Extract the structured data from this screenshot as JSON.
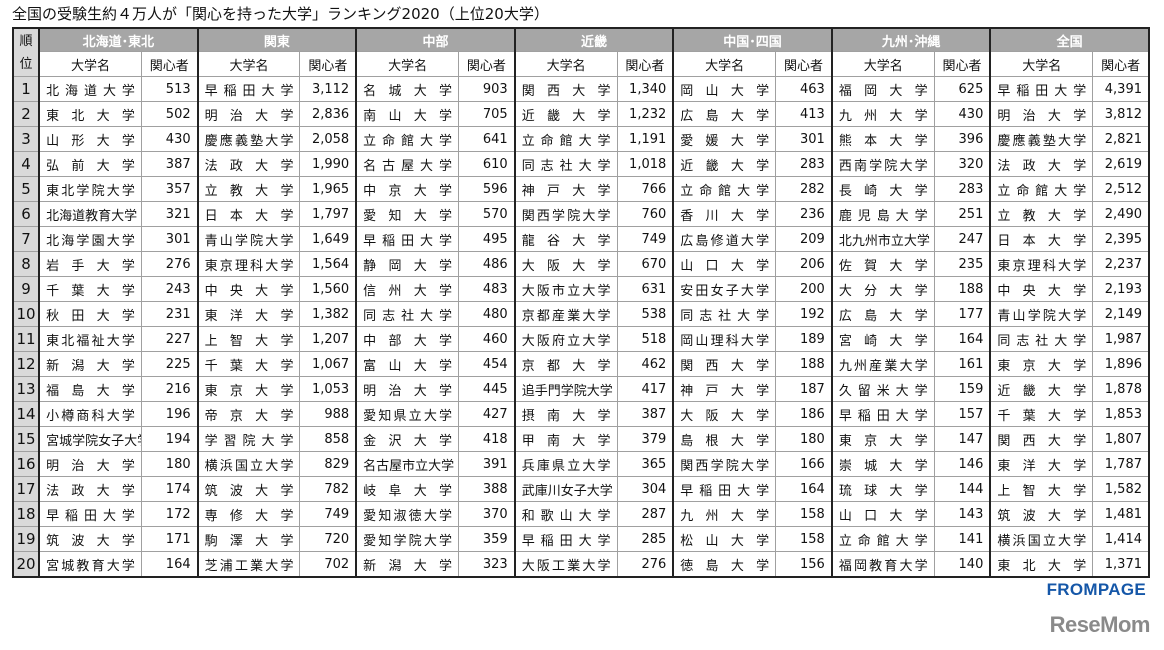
{
  "title": "全国の受験生約４万人が「関心を持った大学」ランキング2020（上位20大学）",
  "header": {
    "rank_label": "順位",
    "name_label": "大学名",
    "count_label": "関心者"
  },
  "ranks": [
    "1",
    "2",
    "3",
    "4",
    "5",
    "6",
    "7",
    "8",
    "9",
    "10",
    "11",
    "12",
    "13",
    "14",
    "15",
    "16",
    "17",
    "18",
    "19",
    "20"
  ],
  "regions": [
    {
      "label": "北海道･東北",
      "rows": [
        {
          "name": "北海道大学",
          "count": "513"
        },
        {
          "name": "東北大学",
          "count": "502"
        },
        {
          "name": "山形大学",
          "count": "430"
        },
        {
          "name": "弘前大学",
          "count": "387"
        },
        {
          "name": "東北学院大学",
          "count": "357"
        },
        {
          "name": "北海道教育大学",
          "count": "321"
        },
        {
          "name": "北海学園大学",
          "count": "301"
        },
        {
          "name": "岩手大学",
          "count": "276"
        },
        {
          "name": "千葉大学",
          "count": "243"
        },
        {
          "name": "秋田大学",
          "count": "231"
        },
        {
          "name": "東北福祉大学",
          "count": "227"
        },
        {
          "name": "新潟大学",
          "count": "225"
        },
        {
          "name": "福島大学",
          "count": "216"
        },
        {
          "name": "小樽商科大学",
          "count": "196"
        },
        {
          "name": "宮城学院女子大学",
          "count": "194"
        },
        {
          "name": "明治大学",
          "count": "180"
        },
        {
          "name": "法政大学",
          "count": "174"
        },
        {
          "name": "早稲田大学",
          "count": "172"
        },
        {
          "name": "筑波大学",
          "count": "171"
        },
        {
          "name": "宮城教育大学",
          "count": "164"
        }
      ]
    },
    {
      "label": "関東",
      "rows": [
        {
          "name": "早稲田大学",
          "count": "3,112"
        },
        {
          "name": "明治大学",
          "count": "2,836"
        },
        {
          "name": "慶應義塾大学",
          "count": "2,058"
        },
        {
          "name": "法政大学",
          "count": "1,990"
        },
        {
          "name": "立教大学",
          "count": "1,965"
        },
        {
          "name": "日本大学",
          "count": "1,797"
        },
        {
          "name": "青山学院大学",
          "count": "1,649"
        },
        {
          "name": "東京理科大学",
          "count": "1,564"
        },
        {
          "name": "中央大学",
          "count": "1,560"
        },
        {
          "name": "東洋大学",
          "count": "1,382"
        },
        {
          "name": "上智大学",
          "count": "1,207"
        },
        {
          "name": "千葉大学",
          "count": "1,067"
        },
        {
          "name": "東京大学",
          "count": "1,053"
        },
        {
          "name": "帝京大学",
          "count": "988"
        },
        {
          "name": "学習院大学",
          "count": "858"
        },
        {
          "name": "横浜国立大学",
          "count": "829"
        },
        {
          "name": "筑波大学",
          "count": "782"
        },
        {
          "name": "専修大学",
          "count": "749"
        },
        {
          "name": "駒澤大学",
          "count": "720"
        },
        {
          "name": "芝浦工業大学",
          "count": "702"
        }
      ]
    },
    {
      "label": "中部",
      "rows": [
        {
          "name": "名城大学",
          "count": "903"
        },
        {
          "name": "南山大学",
          "count": "705"
        },
        {
          "name": "立命館大学",
          "count": "641"
        },
        {
          "name": "名古屋大学",
          "count": "610"
        },
        {
          "name": "中京大学",
          "count": "596"
        },
        {
          "name": "愛知大学",
          "count": "570"
        },
        {
          "name": "早稲田大学",
          "count": "495"
        },
        {
          "name": "静岡大学",
          "count": "486"
        },
        {
          "name": "信州大学",
          "count": "483"
        },
        {
          "name": "同志社大学",
          "count": "480"
        },
        {
          "name": "中部大学",
          "count": "460"
        },
        {
          "name": "富山大学",
          "count": "454"
        },
        {
          "name": "明治大学",
          "count": "445"
        },
        {
          "name": "愛知県立大学",
          "count": "427"
        },
        {
          "name": "金沢大学",
          "count": "418"
        },
        {
          "name": "名古屋市立大学",
          "count": "391"
        },
        {
          "name": "岐阜大学",
          "count": "388"
        },
        {
          "name": "愛知淑徳大学",
          "count": "370"
        },
        {
          "name": "愛知学院大学",
          "count": "359"
        },
        {
          "name": "新潟大学",
          "count": "323"
        }
      ]
    },
    {
      "label": "近畿",
      "rows": [
        {
          "name": "関西大学",
          "count": "1,340"
        },
        {
          "name": "近畿大学",
          "count": "1,232"
        },
        {
          "name": "立命館大学",
          "count": "1,191"
        },
        {
          "name": "同志社大学",
          "count": "1,018"
        },
        {
          "name": "神戸大学",
          "count": "766"
        },
        {
          "name": "関西学院大学",
          "count": "760"
        },
        {
          "name": "龍谷大学",
          "count": "749"
        },
        {
          "name": "大阪大学",
          "count": "670"
        },
        {
          "name": "大阪市立大学",
          "count": "631"
        },
        {
          "name": "京都産業大学",
          "count": "538"
        },
        {
          "name": "大阪府立大学",
          "count": "518"
        },
        {
          "name": "京都大学",
          "count": "462"
        },
        {
          "name": "追手門学院大学",
          "count": "417"
        },
        {
          "name": "摂南大学",
          "count": "387"
        },
        {
          "name": "甲南大学",
          "count": "379"
        },
        {
          "name": "兵庫県立大学",
          "count": "365"
        },
        {
          "name": "武庫川女子大学",
          "count": "304"
        },
        {
          "name": "和歌山大学",
          "count": "287"
        },
        {
          "name": "早稲田大学",
          "count": "285"
        },
        {
          "name": "大阪工業大学",
          "count": "276"
        }
      ]
    },
    {
      "label": "中国･四国",
      "rows": [
        {
          "name": "岡山大学",
          "count": "463"
        },
        {
          "name": "広島大学",
          "count": "413"
        },
        {
          "name": "愛媛大学",
          "count": "301"
        },
        {
          "name": "近畿大学",
          "count": "283"
        },
        {
          "name": "立命館大学",
          "count": "282"
        },
        {
          "name": "香川大学",
          "count": "236"
        },
        {
          "name": "広島修道大学",
          "count": "209"
        },
        {
          "name": "山口大学",
          "count": "206"
        },
        {
          "name": "安田女子大学",
          "count": "200"
        },
        {
          "name": "同志社大学",
          "count": "192"
        },
        {
          "name": "岡山理科大学",
          "count": "189"
        },
        {
          "name": "関西大学",
          "count": "188"
        },
        {
          "name": "神戸大学",
          "count": "187"
        },
        {
          "name": "大阪大学",
          "count": "186"
        },
        {
          "name": "島根大学",
          "count": "180"
        },
        {
          "name": "関西学院大学",
          "count": "166"
        },
        {
          "name": "早稲田大学",
          "count": "164"
        },
        {
          "name": "九州大学",
          "count": "158"
        },
        {
          "name": "松山大学",
          "count": "158"
        },
        {
          "name": "徳島大学",
          "count": "156"
        }
      ]
    },
    {
      "label": "九州･沖縄",
      "rows": [
        {
          "name": "福岡大学",
          "count": "625"
        },
        {
          "name": "九州大学",
          "count": "430"
        },
        {
          "name": "熊本大学",
          "count": "396"
        },
        {
          "name": "西南学院大学",
          "count": "320"
        },
        {
          "name": "長崎大学",
          "count": "283"
        },
        {
          "name": "鹿児島大学",
          "count": "251"
        },
        {
          "name": "北九州市立大学",
          "count": "247"
        },
        {
          "name": "佐賀大学",
          "count": "235"
        },
        {
          "name": "大分大学",
          "count": "188"
        },
        {
          "name": "広島大学",
          "count": "177"
        },
        {
          "name": "宮崎大学",
          "count": "164"
        },
        {
          "name": "九州産業大学",
          "count": "161"
        },
        {
          "name": "久留米大学",
          "count": "159"
        },
        {
          "name": "早稲田大学",
          "count": "157"
        },
        {
          "name": "東京大学",
          "count": "147"
        },
        {
          "name": "崇城大学",
          "count": "146"
        },
        {
          "name": "琉球大学",
          "count": "144"
        },
        {
          "name": "山口大学",
          "count": "143"
        },
        {
          "name": "立命館大学",
          "count": "141"
        },
        {
          "name": "福岡教育大学",
          "count": "140"
        }
      ]
    },
    {
      "label": "全国",
      "rows": [
        {
          "name": "早稲田大学",
          "count": "4,391"
        },
        {
          "name": "明治大学",
          "count": "3,812"
        },
        {
          "name": "慶應義塾大学",
          "count": "2,821"
        },
        {
          "name": "法政大学",
          "count": "2,619"
        },
        {
          "name": "立命館大学",
          "count": "2,512"
        },
        {
          "name": "立教大学",
          "count": "2,490"
        },
        {
          "name": "日本大学",
          "count": "2,395"
        },
        {
          "name": "東京理科大学",
          "count": "2,237"
        },
        {
          "name": "中央大学",
          "count": "2,193"
        },
        {
          "name": "青山学院大学",
          "count": "2,149"
        },
        {
          "name": "同志社大学",
          "count": "1,987"
        },
        {
          "name": "東京大学",
          "count": "1,896"
        },
        {
          "name": "近畿大学",
          "count": "1,878"
        },
        {
          "name": "千葉大学",
          "count": "1,853"
        },
        {
          "name": "関西大学",
          "count": "1,807"
        },
        {
          "name": "東洋大学",
          "count": "1,787"
        },
        {
          "name": "上智大学",
          "count": "1,582"
        },
        {
          "name": "筑波大学",
          "count": "1,481"
        },
        {
          "name": "横浜国立大学",
          "count": "1,414"
        },
        {
          "name": "東北大学",
          "count": "1,371"
        }
      ]
    }
  ],
  "logos": {
    "frompage": "FROMPAGE",
    "resemom": "ReseMom"
  },
  "colors": {
    "header_bg": "#a6a6a6",
    "rank_bg": "#d9d9d9",
    "frompage": "#1557a8",
    "resemom": "#8a8a8a"
  }
}
